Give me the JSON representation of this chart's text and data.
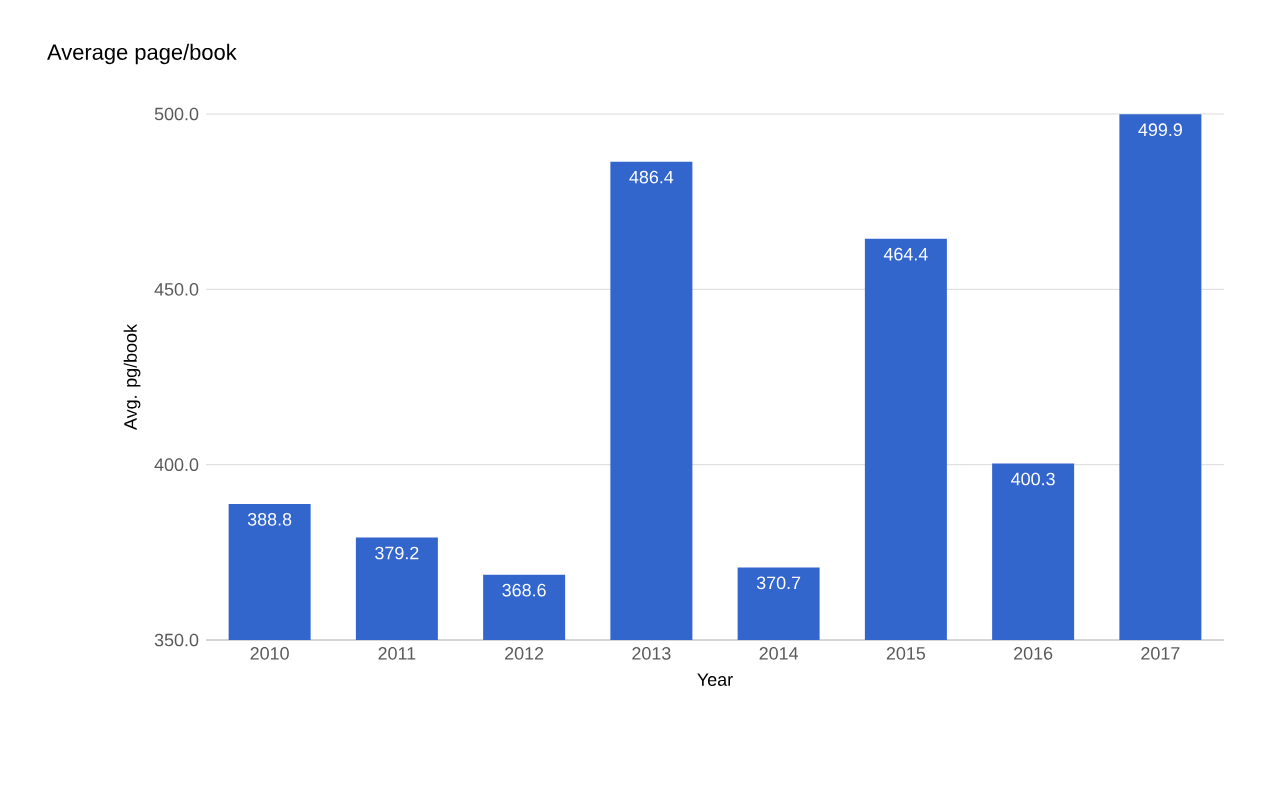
{
  "chart_data": {
    "type": "bar",
    "title": "Average page/book",
    "xlabel": "Year",
    "ylabel": "Avg. pg/book",
    "categories": [
      "2010",
      "2011",
      "2012",
      "2013",
      "2014",
      "2015",
      "2016",
      "2017"
    ],
    "values": [
      388.8,
      379.2,
      368.6,
      486.4,
      370.7,
      464.4,
      400.3,
      499.9
    ],
    "value_labels": [
      "388.8",
      "379.2",
      "368.6",
      "486.4",
      "370.7",
      "464.4",
      "400.3",
      "499.9"
    ],
    "color": "#3366cc",
    "ylim": [
      350,
      500
    ],
    "yticks": [
      {
        "value": 350,
        "label": "350.0"
      },
      {
        "value": 400,
        "label": "400.0"
      },
      {
        "value": 450,
        "label": "450.0"
      },
      {
        "value": 500,
        "label": "500.0"
      }
    ],
    "grid": "y"
  }
}
